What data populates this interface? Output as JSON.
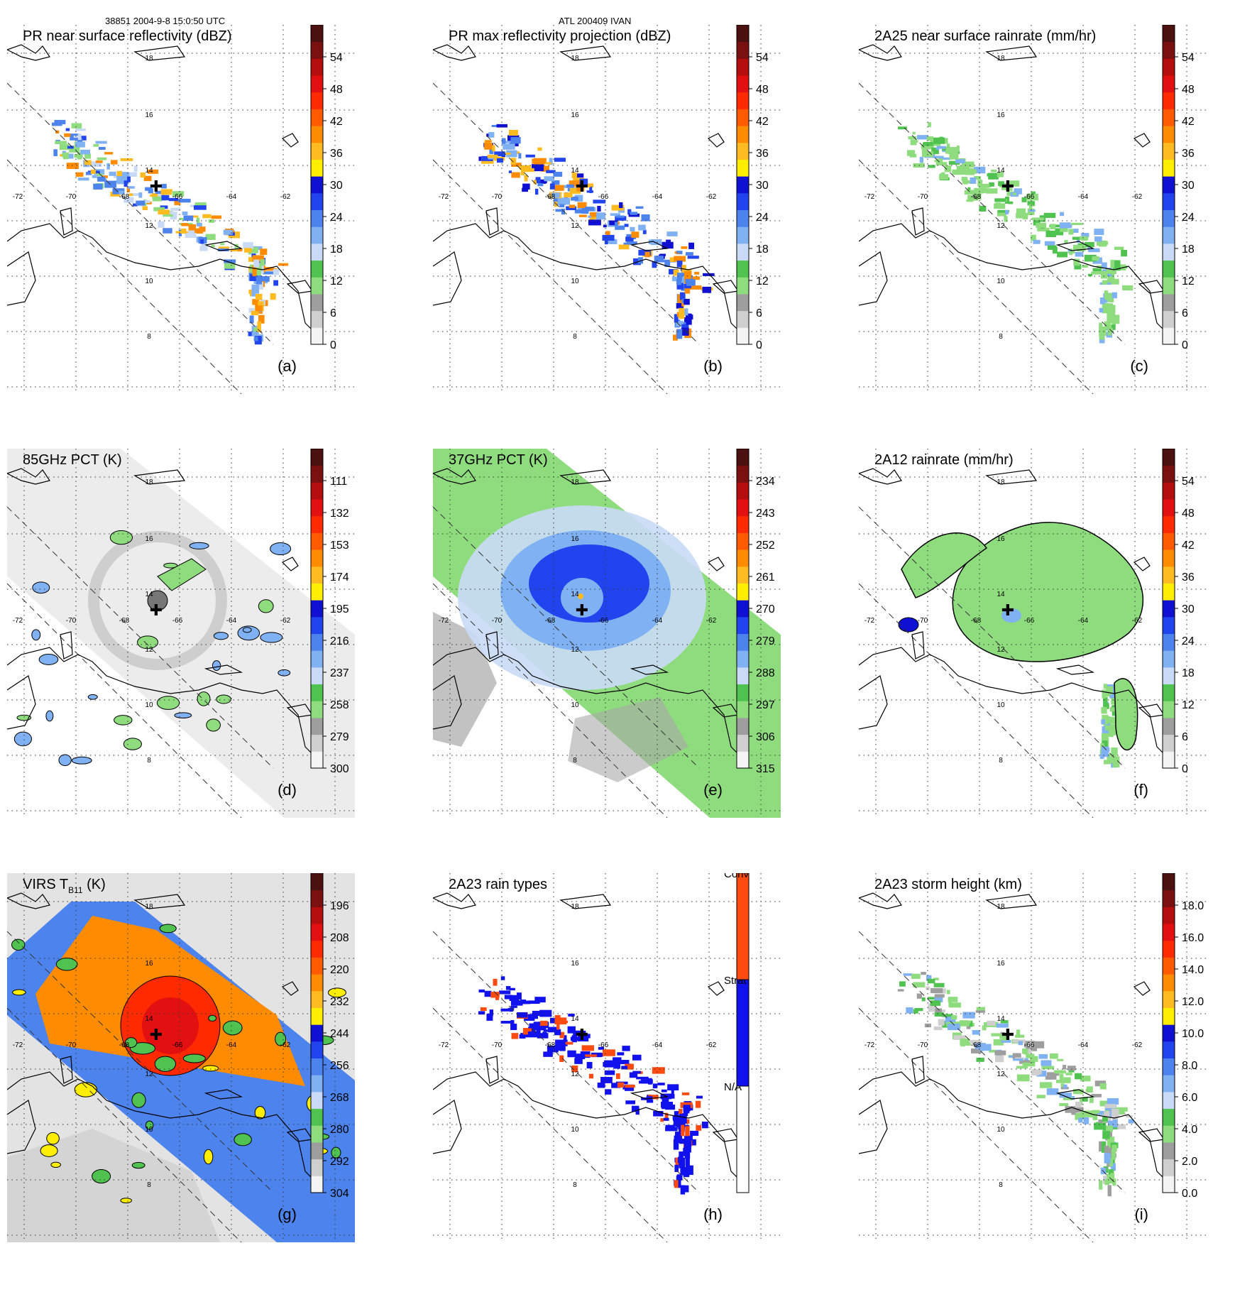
{
  "header": {
    "orbit": "38851 2004-9-8 15:0:50 UTC",
    "storm": "ATL 200409 IVAN"
  },
  "chart_data": [
    {
      "id": "a",
      "type": "heatmap",
      "title": "PR near surface reflectivity (dBZ)",
      "label": "(a)",
      "colorbar": {
        "ticks": [
          "0",
          "6",
          "12",
          "18",
          "24",
          "30",
          "36",
          "42",
          "48",
          "54"
        ]
      },
      "lat_labels": [
        "18",
        "16",
        "14",
        "12",
        "10",
        "8"
      ],
      "lon_labels": [
        "-72",
        "-70",
        "-68",
        "-66",
        "-64",
        "-62"
      ]
    },
    {
      "id": "b",
      "type": "heatmap",
      "title": "PR max reflectivity projection (dBZ)",
      "label": "(b)",
      "colorbar": {
        "ticks": [
          "0",
          "6",
          "12",
          "18",
          "24",
          "30",
          "36",
          "42",
          "48",
          "54"
        ]
      },
      "lat_labels": [
        "18",
        "16",
        "14",
        "12",
        "10",
        "8"
      ],
      "lon_labels": [
        "-72",
        "-70",
        "-68",
        "-66",
        "-64",
        "-62"
      ]
    },
    {
      "id": "c",
      "type": "heatmap",
      "title": "2A25 near surface rainrate (mm/hr)",
      "label": "(c)",
      "colorbar": {
        "ticks": [
          "0",
          "6",
          "12",
          "18",
          "24",
          "30",
          "36",
          "42",
          "48",
          "54"
        ]
      },
      "lat_labels": [
        "18",
        "16",
        "14",
        "12",
        "10",
        "8"
      ],
      "lon_labels": [
        "-72",
        "-70",
        "-68",
        "-66",
        "-64",
        "-62"
      ]
    },
    {
      "id": "d",
      "type": "heatmap",
      "title": "85GHz PCT (K)",
      "label": "(d)",
      "colorbar": {
        "ticks": [
          "300",
          "279",
          "258",
          "237",
          "216",
          "195",
          "174",
          "153",
          "132",
          "111"
        ]
      },
      "lat_labels": [
        "18",
        "16",
        "14",
        "12",
        "10",
        "8"
      ],
      "lon_labels": [
        "-72",
        "-70",
        "-68",
        "-66",
        "-64",
        "-62"
      ]
    },
    {
      "id": "e",
      "type": "heatmap",
      "title": "37GHz PCT (K)",
      "label": "(e)",
      "colorbar": {
        "ticks": [
          "315",
          "306",
          "297",
          "288",
          "279",
          "270",
          "261",
          "252",
          "243",
          "234"
        ]
      },
      "lat_labels": [
        "18",
        "16",
        "14",
        "12",
        "10",
        "8"
      ],
      "lon_labels": [
        "-72",
        "-70",
        "-68",
        "-66",
        "-64",
        "-62"
      ]
    },
    {
      "id": "f",
      "type": "heatmap",
      "title": "2A12 rainrate (mm/hr)",
      "label": "(f)",
      "colorbar": {
        "ticks": [
          "0",
          "6",
          "12",
          "18",
          "24",
          "30",
          "36",
          "42",
          "48",
          "54"
        ]
      },
      "lat_labels": [
        "18",
        "16",
        "14",
        "12",
        "10",
        "8"
      ],
      "lon_labels": [
        "-72",
        "-70",
        "-68",
        "-66",
        "-64",
        "-62"
      ]
    },
    {
      "id": "g",
      "type": "heatmap",
      "title": "VIRS T",
      "title_sub": "B11",
      "title_units": " (K)",
      "label": "(g)",
      "colorbar": {
        "ticks": [
          "304",
          "292",
          "280",
          "268",
          "256",
          "244",
          "232",
          "220",
          "208",
          "196"
        ]
      },
      "lat_labels": [
        "18",
        "16",
        "14",
        "12",
        "10",
        "8"
      ],
      "lon_labels": [
        "-72",
        "-70",
        "-68",
        "-66",
        "-64",
        "-62"
      ]
    },
    {
      "id": "h",
      "type": "heatmap",
      "title": "2A23 rain types",
      "label": "(h)",
      "colorbar": {
        "categories": [
          "N/A",
          "Strat",
          "Conv"
        ]
      },
      "lat_labels": [
        "18",
        "16",
        "14",
        "12",
        "10",
        "8"
      ],
      "lon_labels": [
        "-72",
        "-70",
        "-68",
        "-66",
        "-64",
        "-62"
      ]
    },
    {
      "id": "i",
      "type": "heatmap",
      "title": "2A23 storm height (km)",
      "label": "(i)",
      "colorbar": {
        "ticks": [
          "0.0",
          "2.0",
          "4.0",
          "6.0",
          "8.0",
          "10.0",
          "12.0",
          "14.0",
          "16.0",
          "18.0"
        ]
      },
      "lat_labels": [
        "18",
        "16",
        "14",
        "12",
        "10",
        "8"
      ],
      "lon_labels": [
        "-72",
        "-70",
        "-68",
        "-66",
        "-64",
        "-62"
      ]
    }
  ],
  "colors": {
    "rain_scale": [
      "#f4f4f4",
      "#cfcfcf",
      "#9e9e9e",
      "#8fdc7e",
      "#4fc24f",
      "#c9daf6",
      "#7fb1f3",
      "#4c83ec",
      "#2244ee",
      "#1010d2",
      "#ffee00",
      "#ffbb20",
      "#ff8c00",
      "#ff5a00",
      "#ff2a00",
      "#e21010",
      "#b40e0e",
      "#7a1010",
      "#4b1010"
    ],
    "na": "#ffffff",
    "strat": "#1111ee",
    "conv": "#ff4a10"
  }
}
